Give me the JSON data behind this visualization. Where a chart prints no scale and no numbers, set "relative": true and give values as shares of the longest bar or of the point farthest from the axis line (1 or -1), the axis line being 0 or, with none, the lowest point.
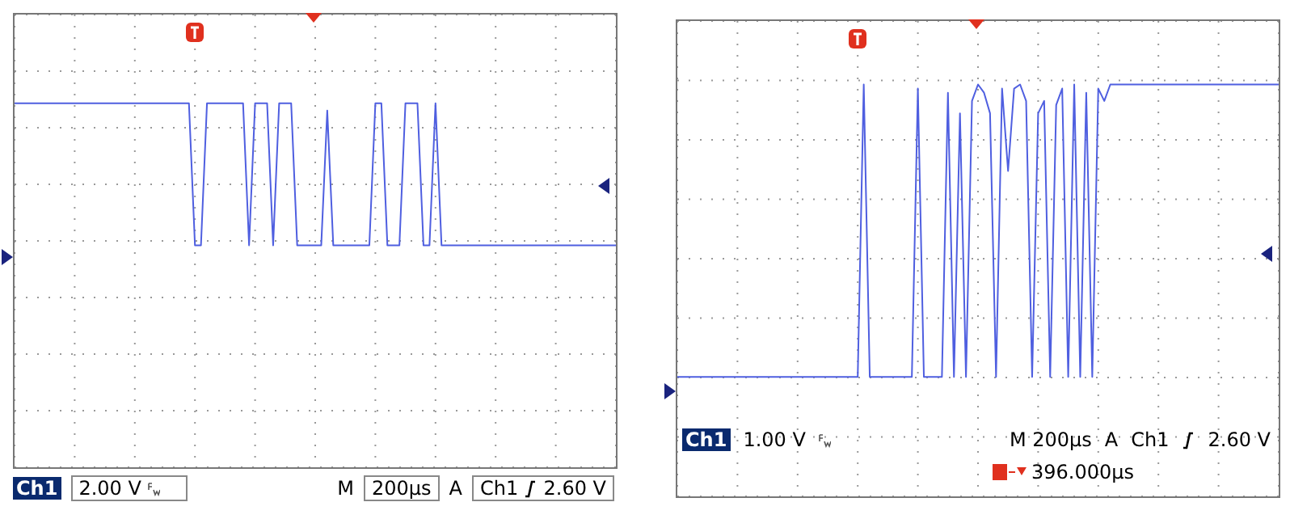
{
  "chart_data": [
    {
      "type": "line",
      "relative": true,
      "grid": true,
      "tick_labels": false,
      "marker": "none",
      "line_style": "solid",
      "categories": [
        null,
        null,
        null,
        null,
        null,
        null,
        null,
        null,
        null,
        null,
        null,
        null,
        null,
        null,
        null,
        null,
        null,
        null,
        null,
        null,
        null,
        null,
        null,
        null,
        null,
        null,
        null,
        null,
        null,
        null,
        null,
        null,
        null,
        null,
        null,
        null,
        null,
        null,
        null,
        null,
        null,
        null,
        null,
        null,
        null,
        null,
        null,
        null,
        null,
        null,
        null,
        null,
        null,
        null,
        null,
        null,
        null,
        null,
        null,
        null,
        null,
        null,
        null,
        null,
        null,
        null,
        null,
        null,
        null,
        null,
        null,
        null,
        null,
        null,
        null,
        null,
        null,
        null,
        null,
        null,
        null,
        null,
        null,
        null,
        null,
        null,
        null,
        null,
        null,
        null,
        null,
        null,
        null,
        null,
        null,
        null,
        null,
        null,
        null,
        null,
        null
      ],
      "annotations": [
        "Ch1",
        "2.00 V",
        "M",
        "200µs",
        "A",
        "Ch1",
        "2.60 V"
      ],
      "series": [
        {
          "color": "#4f5fe0",
          "values": [
            1,
            1,
            1,
            1,
            1,
            1,
            1,
            1,
            1,
            1,
            1,
            1,
            1,
            1,
            1,
            1,
            1,
            1,
            1,
            1,
            1,
            1,
            1,
            1,
            1,
            1,
            1,
            1,
            1,
            1,
            0.61,
            0.61,
            1,
            1,
            1,
            1,
            1,
            1,
            1,
            0.61,
            1,
            1,
            1,
            0.61,
            1,
            1,
            1,
            0.61,
            0.61,
            0.61,
            0.61,
            0.61,
            0.98,
            0.61,
            0.61,
            0.61,
            0.61,
            0.61,
            0.61,
            0.61,
            1,
            1,
            0.61,
            0.61,
            0.61,
            1,
            1,
            1,
            0.61,
            0.61,
            1,
            0.61,
            0.61,
            0.61,
            0.61,
            0.61,
            0.61,
            0.61,
            0.61,
            0.61,
            0.61,
            0.61,
            0.61,
            0.61,
            0.61,
            0.61,
            0.61,
            0.61,
            0.61,
            0.61,
            0.61,
            0.61,
            0.61,
            0.61,
            0.61,
            0.61,
            0.61,
            0.61,
            0.61,
            0.61,
            0.61
          ]
        }
      ]
    },
    {
      "type": "line",
      "relative": true,
      "grid": true,
      "tick_labels": false,
      "marker": "none",
      "line_style": "solid",
      "categories": [
        null,
        null,
        null,
        null,
        null,
        null,
        null,
        null,
        null,
        null,
        null,
        null,
        null,
        null,
        null,
        null,
        null,
        null,
        null,
        null,
        null,
        null,
        null,
        null,
        null,
        null,
        null,
        null,
        null,
        null,
        null,
        null,
        null,
        null,
        null,
        null,
        null,
        null,
        null,
        null,
        null,
        null,
        null,
        null,
        null,
        null,
        null,
        null,
        null,
        null,
        null,
        null,
        null,
        null,
        null,
        null,
        null,
        null,
        null,
        null,
        null,
        null,
        null,
        null,
        null,
        null,
        null,
        null,
        null,
        null,
        null,
        null,
        null,
        null,
        null,
        null,
        null,
        null,
        null,
        null,
        null,
        null,
        null,
        null,
        null,
        null,
        null,
        null,
        null,
        null,
        null,
        null,
        null,
        null,
        null,
        null,
        null,
        null,
        null,
        null,
        null
      ],
      "annotations": [
        "Ch1",
        "1.00 V",
        "M 200µs",
        "A",
        "Ch1",
        "2.60 V",
        "396.000µs"
      ],
      "series": [
        {
          "color": "#4f5fe0",
          "values": [
            0.29,
            0.29,
            0.29,
            0.29,
            0.29,
            0.29,
            0.29,
            0.29,
            0.29,
            0.29,
            0.29,
            0.29,
            0.29,
            0.29,
            0.29,
            0.29,
            0.29,
            0.29,
            0.29,
            0.29,
            0.29,
            0.29,
            0.29,
            0.29,
            0.29,
            0.29,
            0.29,
            0.29,
            0.29,
            0.29,
            0.29,
            1,
            0.29,
            0.29,
            0.29,
            0.29,
            0.29,
            0.29,
            0.29,
            0.29,
            0.99,
            0.29,
            0.29,
            0.29,
            0.29,
            0.98,
            0.29,
            0.93,
            0.29,
            0.96,
            1,
            0.98,
            0.93,
            0.29,
            0.99,
            0.79,
            0.99,
            1,
            0.96,
            0.29,
            0.93,
            0.96,
            0.29,
            0.95,
            0.99,
            0.29,
            1,
            0.29,
            0.98,
            0.29,
            0.99,
            0.96,
            1,
            1,
            1,
            1,
            1,
            1,
            1,
            1,
            1,
            1,
            1,
            1,
            1,
            1,
            1,
            1,
            1,
            1,
            1,
            1,
            1,
            1,
            1,
            1,
            1,
            1,
            1,
            1,
            1
          ]
        }
      ]
    }
  ]
}
